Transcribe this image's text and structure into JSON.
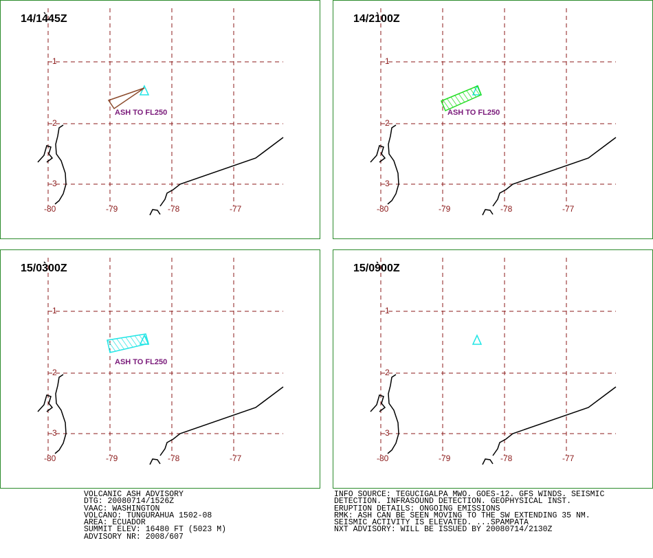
{
  "panels": [
    {
      "time": "14/1445Z",
      "annotation": "ASH TO FL250"
    },
    {
      "time": "14/2100Z",
      "annotation": "ASH TO FL250"
    },
    {
      "time": "15/0300Z",
      "annotation": "ASH TO FL250"
    },
    {
      "time": "15/0900Z"
    }
  ],
  "lat_labels": [
    "-1",
    "-2",
    "-3"
  ],
  "lon_labels": [
    "-80",
    "-79",
    "-78",
    "-77"
  ],
  "advisory_left": [
    "VOLCANIC ASH ADVISORY",
    "DTG: 20080714/1526Z",
    "VAAC: WASHINGTON",
    "VOLCANO: TUNGURAHUA 1502-08",
    "AREA: ECUADOR",
    "SUMMIT ELEV: 16480 FT (5023 M)",
    "ADVISORY NR: 2008/607"
  ],
  "advisory_right": [
    "INFO SOURCE: TEGUCIGALPA MWO. GOES-12. GFS WINDS. SEISMIC",
    "DETECTION. INFRASOUND DETECTION. GEOPHYSICAL INST.",
    "ERUPTION DETAILS: ONGOING EMISSIONS",
    "RMK: ASH CAN BE SEEN MOVING TO THE SW EXTENDING 35 NM.",
    "SEISMIC ACTIVITY IS ELEVATED. ...SPAMPATA",
    "NXT ADVISORY: WILL BE ISSUED BY 20080714/2130Z"
  ]
}
